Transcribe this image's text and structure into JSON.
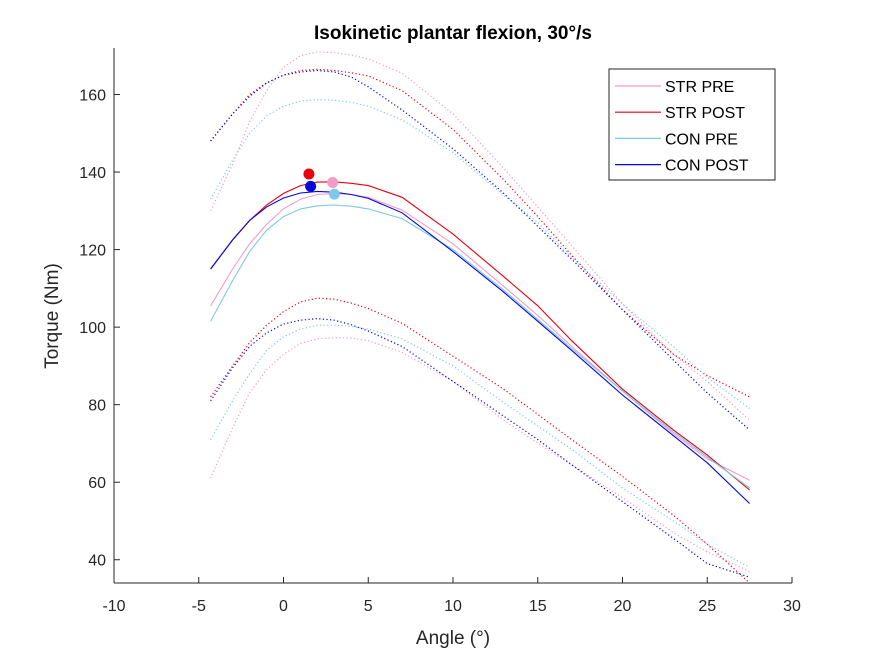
{
  "chart_data": {
    "type": "line",
    "title": "Isokinetic plantar flexion, 30°/s",
    "xlabel": "Angle (°)",
    "ylabel": "Torque (Nm)",
    "xlim": [
      -10,
      30
    ],
    "ylim": [
      34,
      172
    ],
    "xticks": [
      -10,
      -5,
      0,
      5,
      10,
      15,
      20,
      25,
      30
    ],
    "yticks": [
      40,
      60,
      80,
      100,
      120,
      140,
      160
    ],
    "xtick_labels": [
      "-10",
      "-5",
      "0",
      "5",
      "10",
      "15",
      "20",
      "25",
      "30"
    ],
    "ytick_labels": [
      "40",
      "60",
      "80",
      "100",
      "120",
      "140",
      "160"
    ],
    "grid": false,
    "legend_position": "top-right",
    "series": [
      {
        "name": "STR PRE",
        "color": "#f49ac9",
        "x": [
          -4.3,
          -3,
          -2,
          -1,
          0,
          1,
          2,
          3,
          4,
          5,
          7,
          10,
          13,
          15,
          17,
          20,
          23,
          25,
          27.5
        ],
        "y": [
          105.5,
          115,
          121.5,
          126.5,
          130.5,
          133,
          134.2,
          134.5,
          134.2,
          133.5,
          130.2,
          121.5,
          110.5,
          103,
          95,
          83.5,
          72.5,
          66,
          60.5
        ],
        "mean_marker": {
          "x": 2.9,
          "y": 137.3
        },
        "sd_upper": [
          130,
          142,
          153,
          161,
          167,
          170,
          171,
          170.8,
          170.2,
          169.2,
          165.5,
          155,
          141,
          131,
          121,
          106,
          93,
          86,
          76
        ],
        "sd_lower": [
          61,
          74,
          83,
          89,
          93,
          95.8,
          97,
          97.3,
          97.2,
          96.5,
          93.5,
          86,
          76,
          70,
          64.5,
          56,
          47,
          42,
          37
        ]
      },
      {
        "name": "STR POST",
        "color": "#e8000e",
        "x": [
          -4.3,
          -3,
          -2,
          -1,
          0,
          1,
          2,
          3,
          4,
          5,
          7,
          10,
          13,
          15,
          17,
          20,
          23,
          25,
          27.5
        ],
        "y": [
          115,
          122.5,
          127.5,
          131.5,
          134.5,
          136.5,
          137.4,
          137.5,
          137.1,
          136.5,
          133.5,
          124,
          113,
          105.5,
          96.5,
          84,
          73.5,
          67,
          58
        ],
        "mean_marker": {
          "x": 1.5,
          "y": 139.5
        },
        "sd_upper": [
          148,
          155,
          160,
          163,
          165,
          166.2,
          166.5,
          166.2,
          165.6,
          164.8,
          161,
          151,
          138,
          128.5,
          118.5,
          104.5,
          93,
          87.5,
          82
        ],
        "sd_lower": [
          82,
          90,
          96,
          100.5,
          104,
          106.5,
          107.5,
          107.2,
          106.2,
          104.8,
          101,
          92.5,
          84,
          77.5,
          71,
          61.5,
          51.5,
          44,
          34
        ]
      },
      {
        "name": "CON PRE",
        "color": "#7ec8e9",
        "x": [
          -4.3,
          -3,
          -2,
          -1,
          0,
          1,
          2,
          3,
          4,
          5,
          7,
          10,
          13,
          15,
          17,
          20,
          23,
          25,
          27.5
        ],
        "y": [
          101.5,
          112,
          119.5,
          125,
          128.5,
          130.5,
          131.3,
          131.5,
          131.2,
          130.5,
          128,
          120,
          109.5,
          102,
          94.5,
          83.5,
          73,
          66.5,
          58.5
        ],
        "mean_marker": {
          "x": 3.0,
          "y": 134.3
        },
        "sd_upper": [
          133,
          143,
          150,
          154.5,
          157,
          158.3,
          158.7,
          158.5,
          158,
          157,
          153.5,
          145,
          134,
          127,
          118,
          106,
          95,
          87,
          79
        ],
        "sd_lower": [
          71,
          81,
          88,
          94,
          97.5,
          99.5,
          100.5,
          100.5,
          100.2,
          99.5,
          97,
          90,
          80.5,
          74.5,
          68.5,
          58.5,
          50,
          44,
          38
        ]
      },
      {
        "name": "CON POST",
        "color": "#0008dd",
        "x": [
          -4.3,
          -3,
          -2,
          -1,
          0,
          1,
          2,
          3,
          4,
          5,
          7,
          10,
          13,
          15,
          17,
          20,
          23,
          25,
          27.5
        ],
        "y": [
          115,
          122.5,
          127.5,
          131,
          133.3,
          134.6,
          135,
          134.8,
          134.2,
          133.2,
          129.5,
          119.5,
          109,
          101.5,
          94,
          82.5,
          72,
          65,
          54.5
        ],
        "mean_marker": {
          "x": 1.6,
          "y": 136.3
        },
        "sd_upper": [
          148,
          155,
          159.5,
          163,
          165,
          165.8,
          166.2,
          165.8,
          164.5,
          162,
          156,
          146,
          134.5,
          126,
          117.5,
          104.5,
          91.5,
          83,
          73.5
        ],
        "sd_lower": [
          81,
          89.5,
          95,
          98.5,
          100.8,
          101.8,
          102.2,
          101.8,
          100.6,
          99,
          95,
          86,
          77,
          71,
          64.5,
          55,
          45.5,
          39,
          35.5
        ]
      }
    ]
  }
}
